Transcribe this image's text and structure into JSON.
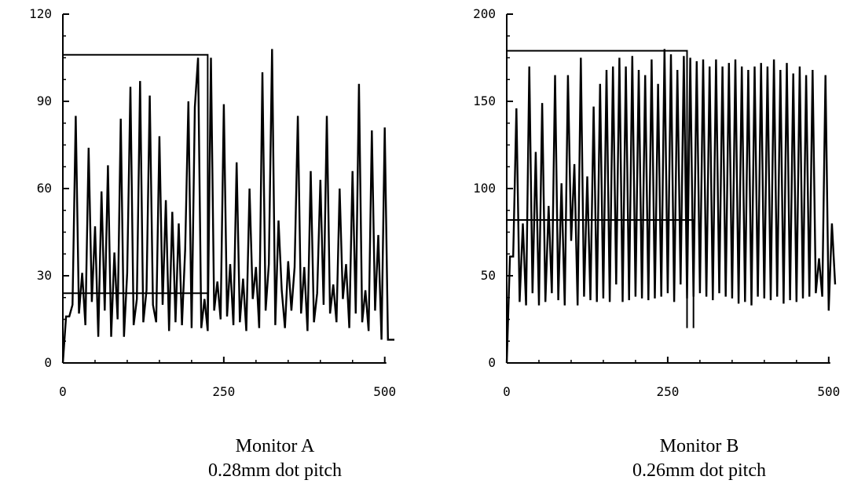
{
  "chart_data": [
    {
      "type": "line",
      "caption_title": "Monitor A",
      "caption_subtitle": "0.28mm dot pitch",
      "xlim": [
        0,
        515
      ],
      "ylim": [
        0,
        120
      ],
      "xticks": [
        0,
        250,
        500
      ],
      "yticks": [
        0,
        30,
        60,
        90,
        120
      ],
      "xtick_labels": [
        "0",
        "250",
        "500"
      ],
      "ytick_labels": [
        "0",
        "30",
        "60",
        "90",
        "120"
      ],
      "grid": false,
      "legend": "none",
      "series": [
        {
          "x": [
            0,
            5,
            10,
            15,
            20,
            25,
            30,
            35,
            40,
            45,
            50,
            55,
            60,
            65,
            70,
            75,
            80,
            85,
            90,
            95,
            100,
            105,
            110,
            115,
            120,
            125,
            130,
            135,
            140,
            145,
            150,
            155,
            160,
            165,
            170,
            175,
            180,
            185,
            190,
            195,
            200,
            205,
            210,
            215,
            220,
            225,
            230,
            235,
            240,
            245,
            250,
            255,
            260,
            265,
            270,
            275,
            280,
            285,
            290,
            295,
            300,
            305,
            310,
            315,
            320,
            325,
            330,
            335,
            340,
            345,
            350,
            355,
            360,
            365,
            370,
            375,
            380,
            385,
            390,
            395,
            400,
            405,
            410,
            415,
            420,
            425,
            430,
            435,
            440,
            445,
            450,
            455,
            460,
            465,
            470,
            475,
            480,
            485,
            490,
            495,
            500,
            505,
            510,
            515
          ],
          "values": [
            0,
            16,
            16,
            20,
            85,
            17,
            31,
            13,
            74,
            21,
            47,
            9,
            59,
            18,
            68,
            9,
            38,
            15,
            84,
            9,
            31,
            95,
            13,
            22,
            97,
            14,
            25,
            92,
            20,
            14,
            78,
            20,
            56,
            11,
            52,
            14,
            48,
            13,
            39,
            90,
            12,
            88,
            105,
            12,
            22,
            11,
            105,
            18,
            28,
            15,
            89,
            16,
            34,
            13,
            69,
            14,
            29,
            11,
            60,
            22,
            33,
            12,
            100,
            18,
            34,
            108,
            13,
            49,
            25,
            12,
            35,
            18,
            33,
            85,
            17,
            33,
            11,
            66,
            14,
            24,
            63,
            20,
            85,
            17,
            27,
            14,
            60,
            22,
            34,
            12,
            66,
            17,
            96,
            14,
            25,
            11,
            80,
            18,
            44,
            8,
            81,
            8,
            8,
            8
          ],
          "color": "#000000"
        }
      ],
      "reference_lines": [
        {
          "type": "horizontal",
          "y": 106,
          "x_range": [
            0,
            225
          ]
        },
        {
          "type": "horizontal",
          "y": 24,
          "x_range": [
            0,
            225
          ]
        }
      ]
    },
    {
      "type": "line",
      "caption_title": "Monitor B",
      "caption_subtitle": "0.26mm dot pitch",
      "xlim": [
        0,
        510
      ],
      "ylim": [
        0,
        200
      ],
      "xticks": [
        0,
        250,
        500
      ],
      "yticks": [
        0,
        50,
        100,
        150,
        200
      ],
      "xtick_labels": [
        "0",
        "250",
        "500"
      ],
      "ytick_labels": [
        "0",
        "50",
        "100",
        "150",
        "200"
      ],
      "grid": false,
      "legend": "none",
      "series": [
        {
          "x": [
            0,
            5,
            10,
            15,
            20,
            25,
            30,
            35,
            40,
            45,
            50,
            55,
            60,
            65,
            70,
            75,
            80,
            85,
            90,
            95,
            100,
            105,
            110,
            115,
            120,
            125,
            130,
            135,
            140,
            145,
            150,
            155,
            160,
            165,
            170,
            175,
            180,
            185,
            190,
            195,
            200,
            205,
            210,
            215,
            220,
            225,
            230,
            235,
            240,
            245,
            250,
            255,
            260,
            265,
            270,
            275,
            280,
            285,
            290,
            295,
            300,
            305,
            310,
            315,
            320,
            325,
            330,
            335,
            340,
            345,
            350,
            355,
            360,
            365,
            370,
            375,
            380,
            385,
            390,
            395,
            400,
            405,
            410,
            415,
            420,
            425,
            430,
            435,
            440,
            445,
            450,
            455,
            460,
            465,
            470,
            475,
            480,
            485,
            490,
            495,
            500,
            505,
            510
          ],
          "values": [
            0,
            61,
            61,
            146,
            35,
            80,
            33,
            170,
            40,
            121,
            33,
            149,
            35,
            90,
            40,
            165,
            36,
            103,
            33,
            165,
            70,
            114,
            33,
            175,
            38,
            107,
            36,
            147,
            35,
            160,
            37,
            168,
            35,
            170,
            45,
            175,
            35,
            170,
            36,
            176,
            38,
            168,
            37,
            165,
            36,
            174,
            37,
            160,
            38,
            180,
            40,
            177,
            35,
            168,
            45,
            176,
            37,
            175,
            38,
            173,
            40,
            174,
            38,
            170,
            36,
            174,
            40,
            170,
            38,
            172,
            37,
            174,
            34,
            170,
            35,
            168,
            33,
            170,
            38,
            172,
            37,
            170,
            36,
            174,
            38,
            168,
            34,
            172,
            36,
            166,
            35,
            170,
            37,
            165,
            38,
            168,
            40,
            60,
            38,
            165,
            30,
            80,
            45
          ],
          "color": "#000000"
        }
      ],
      "reference_lines": [
        {
          "type": "horizontal",
          "y": 179,
          "x_range": [
            0,
            280
          ]
        },
        {
          "type": "horizontal",
          "y": 82,
          "x_range": [
            0,
            290
          ]
        }
      ]
    }
  ]
}
